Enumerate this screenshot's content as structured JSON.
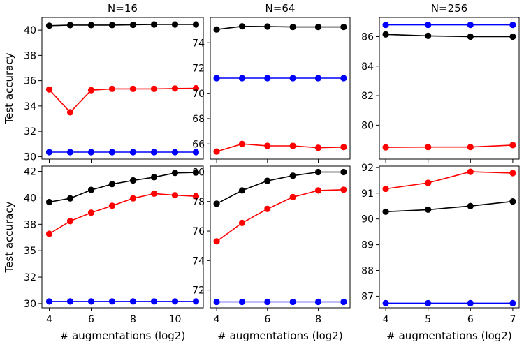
{
  "chart_data": [
    {
      "type": "line",
      "title": "N=16",
      "xlabel": "",
      "ylabel": "Test accuracy",
      "x": [
        4,
        5,
        6,
        7,
        8,
        9,
        10,
        11
      ],
      "xlim": [
        3.65,
        11.35
      ],
      "ylim": [
        29.8,
        41.0
      ],
      "xticks": [
        4,
        6,
        8,
        10
      ],
      "xtick_labels": [
        "",
        "",
        "",
        ""
      ],
      "yticks": [
        30,
        32,
        34,
        36,
        38,
        40
      ],
      "ytick_labels": [
        "30",
        "32",
        "34",
        "36",
        "38",
        "40"
      ],
      "series": [
        {
          "color": "#000000",
          "values": [
            40.35,
            40.4,
            40.4,
            40.4,
            40.42,
            40.45,
            40.45,
            40.45
          ]
        },
        {
          "color": "#ff0000",
          "values": [
            35.3,
            33.5,
            35.25,
            35.35,
            35.35,
            35.35,
            35.38,
            35.4
          ]
        },
        {
          "color": "#0000ff",
          "values": [
            30.35,
            30.35,
            30.35,
            30.35,
            30.35,
            30.35,
            30.35,
            30.35
          ]
        }
      ]
    },
    {
      "type": "line",
      "title": "N=64",
      "xlabel": "",
      "ylabel": "",
      "x": [
        4,
        5,
        6,
        7,
        8,
        9
      ],
      "xlim": [
        3.75,
        9.25
      ],
      "ylim": [
        64.8,
        76.0
      ],
      "xticks": [
        4,
        6,
        8
      ],
      "xtick_labels": [
        "",
        "",
        ""
      ],
      "yticks": [
        66,
        68,
        70,
        72,
        74
      ],
      "ytick_labels": [
        "66",
        "68",
        "70",
        "72",
        "74"
      ],
      "series": [
        {
          "color": "#000000",
          "values": [
            75.05,
            75.3,
            75.28,
            75.25,
            75.25,
            75.25
          ]
        },
        {
          "color": "#ff0000",
          "values": [
            65.4,
            66.0,
            65.85,
            65.85,
            65.7,
            65.75
          ]
        },
        {
          "color": "#0000ff",
          "values": [
            71.2,
            71.2,
            71.2,
            71.2,
            71.2,
            71.2
          ]
        }
      ]
    },
    {
      "type": "line",
      "title": "N=256",
      "xlabel": "",
      "ylabel": "",
      "x": [
        4,
        5,
        6,
        7
      ],
      "xlim": [
        3.85,
        7.15
      ],
      "ylim": [
        77.7,
        87.3
      ],
      "xticks": [
        4,
        5,
        6,
        7
      ],
      "xtick_labels": [
        "",
        "",
        "",
        ""
      ],
      "yticks": [
        80,
        82,
        84,
        86
      ],
      "ytick_labels": [
        "80",
        "82",
        "84",
        "86"
      ],
      "series": [
        {
          "color": "#000000",
          "values": [
            86.15,
            86.05,
            86.0,
            86.0
          ]
        },
        {
          "color": "#ff0000",
          "values": [
            78.5,
            78.52,
            78.52,
            78.65
          ]
        },
        {
          "color": "#0000ff",
          "values": [
            86.8,
            86.8,
            86.8,
            86.8
          ]
        }
      ]
    },
    {
      "type": "line",
      "title": "",
      "xlabel": "# augmentations (log2)",
      "ylabel": "Test accuracy",
      "x": [
        4,
        5,
        6,
        7,
        8,
        9,
        10,
        11
      ],
      "xlim": [
        3.65,
        11.35
      ],
      "ylim": [
        29.6,
        43.0
      ],
      "xticks": [
        4,
        6,
        8,
        10
      ],
      "xtick_labels": [
        "4",
        "6",
        "8",
        "10"
      ],
      "yticks": [
        30,
        32.5,
        35,
        37.5,
        40,
        42.5
      ],
      "ytick_labels": [
        "30",
        "32",
        "35",
        "38",
        "40",
        "42"
      ],
      "series": [
        {
          "color": "#000000",
          "values": [
            39.6,
            39.95,
            40.75,
            41.3,
            41.65,
            41.95,
            42.35,
            42.4
          ]
        },
        {
          "color": "#ff0000",
          "values": [
            36.6,
            37.8,
            38.6,
            39.25,
            39.95,
            40.4,
            40.25,
            40.15
          ]
        },
        {
          "color": "#0000ff",
          "values": [
            30.2,
            30.2,
            30.2,
            30.2,
            30.2,
            30.2,
            30.2,
            30.2
          ]
        }
      ]
    },
    {
      "type": "line",
      "title": "",
      "xlabel": "# augmentations (log2)",
      "ylabel": "",
      "x": [
        4,
        5,
        6,
        7,
        8,
        9
      ],
      "xlim": [
        3.75,
        9.25
      ],
      "ylim": [
        70.8,
        80.4
      ],
      "xticks": [
        4,
        6,
        8
      ],
      "xtick_labels": [
        "4",
        "6",
        "8"
      ],
      "yticks": [
        72,
        74,
        76,
        78,
        80
      ],
      "ytick_labels": [
        "72",
        "74",
        "76",
        "78",
        "80"
      ],
      "series": [
        {
          "color": "#000000",
          "values": [
            77.85,
            78.75,
            79.4,
            79.75,
            80.0,
            80.0
          ]
        },
        {
          "color": "#ff0000",
          "values": [
            75.3,
            76.55,
            77.5,
            78.3,
            78.75,
            78.8
          ]
        },
        {
          "color": "#0000ff",
          "values": [
            71.2,
            71.2,
            71.2,
            71.2,
            71.2,
            71.2
          ]
        }
      ]
    },
    {
      "type": "line",
      "title": "",
      "xlabel": "# augmentations (log2)",
      "ylabel": "",
      "x": [
        4,
        5,
        6,
        7
      ],
      "xlim": [
        3.85,
        7.15
      ],
      "ylim": [
        86.55,
        92.05
      ],
      "xticks": [
        4,
        5,
        6,
        7
      ],
      "xtick_labels": [
        "4",
        "5",
        "6",
        "7"
      ],
      "yticks": [
        87,
        88,
        89,
        90,
        91,
        92
      ],
      "ytick_labels": [
        "87",
        "88",
        "89",
        "90",
        "91",
        "92"
      ],
      "series": [
        {
          "color": "#000000",
          "values": [
            90.28,
            90.36,
            90.5,
            90.68
          ]
        },
        {
          "color": "#ff0000",
          "values": [
            91.17,
            91.4,
            91.83,
            91.78
          ]
        },
        {
          "color": "#0000ff",
          "values": [
            86.73,
            86.73,
            86.73,
            86.73
          ]
        }
      ]
    }
  ]
}
